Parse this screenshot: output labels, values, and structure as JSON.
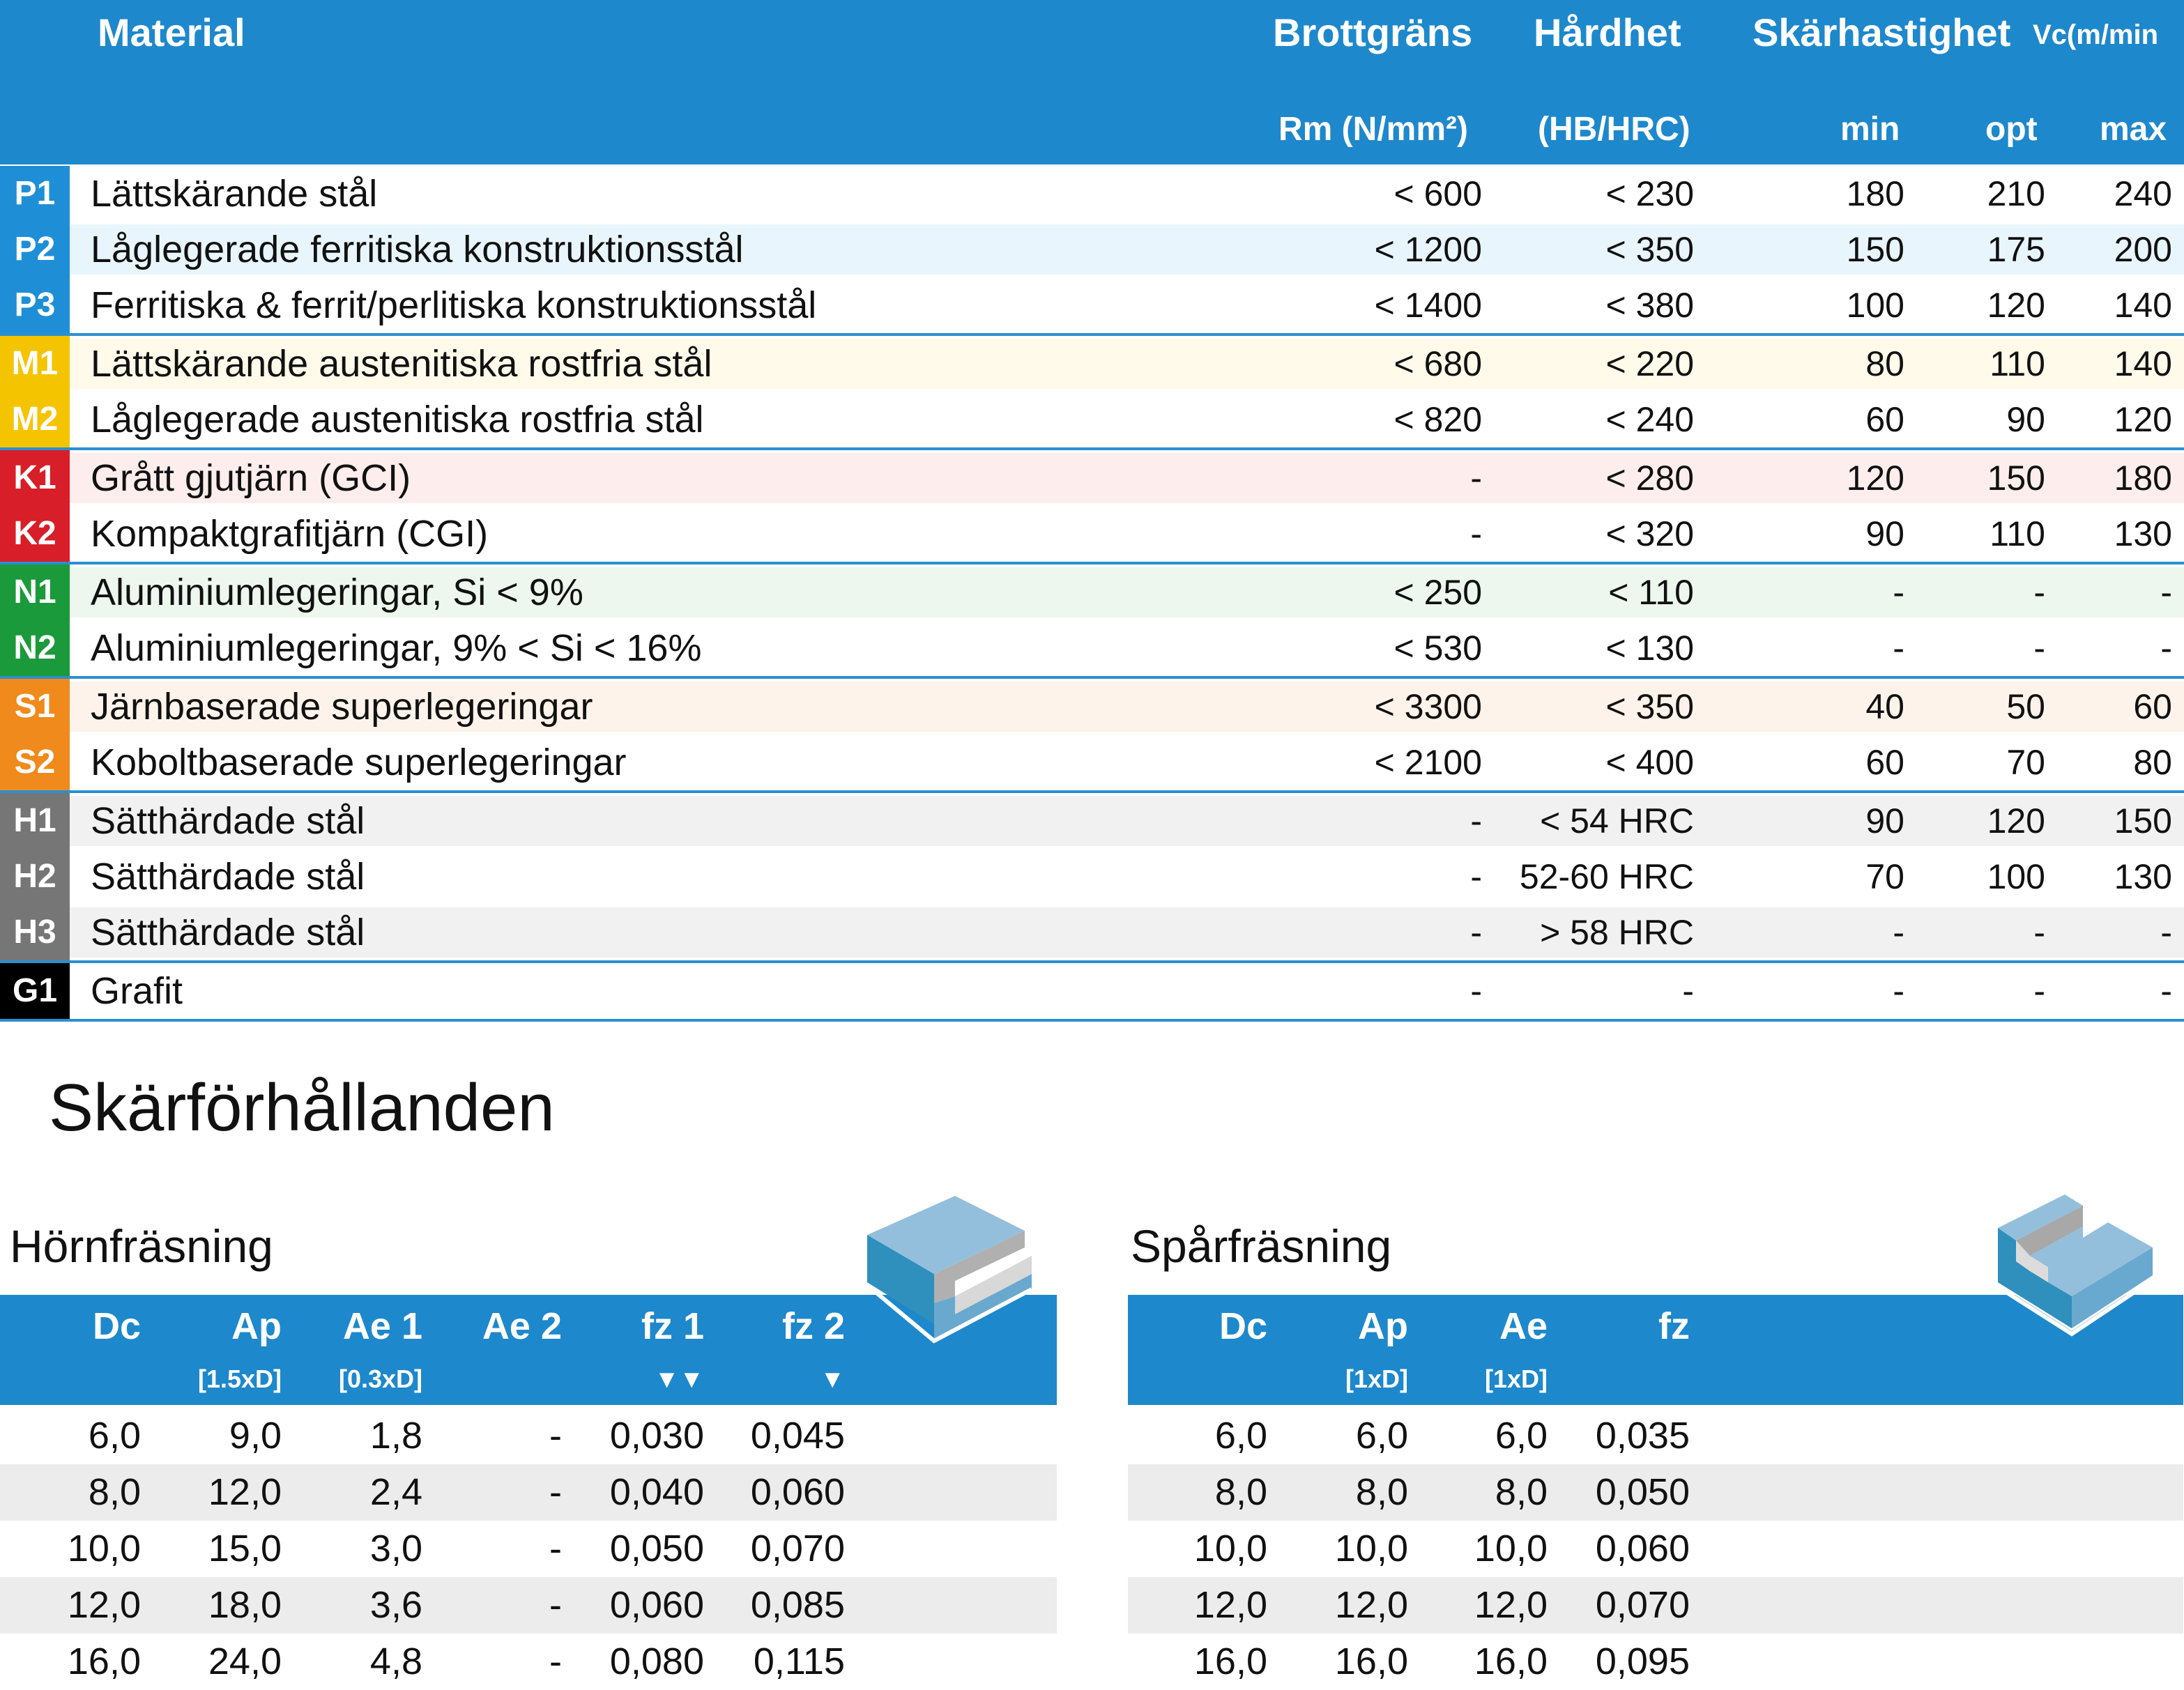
{
  "header": {
    "material": "Material",
    "brottgrans": "Brottgräns",
    "hardhet": "Hårdhet",
    "skarhastighet": "Skärhastighet",
    "vc_unit": "Vc(m/min",
    "rm_unit": "Rm (N/mm²)",
    "hb_unit": "(HB/HRC)",
    "min": "min",
    "opt": "opt",
    "max": "max"
  },
  "colors": {
    "header": "#1e88cc",
    "P": "#1e8fd6",
    "M": "#f5c400",
    "K": "#d81e28",
    "N": "#1a9a3a",
    "S": "#f08a1c",
    "H": "#767676",
    "G": "#000000"
  },
  "groups": [
    {
      "color_key": "P",
      "tint": "#e8f5fd",
      "rows": [
        {
          "code": "P1",
          "name": "Lättskärande stål",
          "rm": "< 600",
          "hb": "< 230",
          "min": "180",
          "opt": "210",
          "max": "240",
          "tinted": false
        },
        {
          "code": "P2",
          "name": "Låglegerade ferritiska konstruktionsstål",
          "rm": "< 1200",
          "hb": "< 350",
          "min": "150",
          "opt": "175",
          "max": "200",
          "tinted": true
        },
        {
          "code": "P3",
          "name": "Ferritiska & ferrit/perlitiska konstruktionsstål",
          "rm": "< 1400",
          "hb": "< 380",
          "min": "100",
          "opt": "120",
          "max": "140",
          "tinted": false
        }
      ]
    },
    {
      "color_key": "M",
      "tint": "#fffaea",
      "rows": [
        {
          "code": "M1",
          "name": "Lättskärande austenitiska rostfria stål",
          "rm": "< 680",
          "hb": "< 220",
          "min": "80",
          "opt": "110",
          "max": "140",
          "tinted": true
        },
        {
          "code": "M2",
          "name": "Låglegerade austenitiska rostfria stål",
          "rm": "< 820",
          "hb": "< 240",
          "min": "60",
          "opt": "90",
          "max": "120",
          "tinted": false
        }
      ]
    },
    {
      "color_key": "K",
      "tint": "#fdeeed",
      "rows": [
        {
          "code": "K1",
          "name": "Grått gjutjärn (GCI)",
          "rm": "-",
          "hb": "< 280",
          "min": "120",
          "opt": "150",
          "max": "180",
          "tinted": true
        },
        {
          "code": "K2",
          "name": "Kompaktgrafitjärn (CGI)",
          "rm": "-",
          "hb": "< 320",
          "min": "90",
          "opt": "110",
          "max": "130",
          "tinted": false
        }
      ]
    },
    {
      "color_key": "N",
      "tint": "#edf7ee",
      "rows": [
        {
          "code": "N1",
          "name": "Aluminiumlegeringar, Si < 9%",
          "rm": "< 250",
          "hb": "< 110",
          "min": "-",
          "opt": "-",
          "max": "-",
          "tinted": true
        },
        {
          "code": "N2",
          "name": "Aluminiumlegeringar, 9% < Si < 16%",
          "rm": "< 530",
          "hb": "< 130",
          "min": "-",
          "opt": "-",
          "max": "-",
          "tinted": false
        }
      ]
    },
    {
      "color_key": "S",
      "tint": "#fef3ea",
      "rows": [
        {
          "code": "S1",
          "name": "Järnbaserade superlegeringar",
          "rm": "< 3300",
          "hb": "< 350",
          "min": "40",
          "opt": "50",
          "max": "60",
          "tinted": true
        },
        {
          "code": "S2",
          "name": "Koboltbaserade superlegeringar",
          "rm": "< 2100",
          "hb": "< 400",
          "min": "60",
          "opt": "70",
          "max": "80",
          "tinted": false
        }
      ]
    },
    {
      "color_key": "H",
      "tint": "#f1f1f1",
      "rows": [
        {
          "code": "H1",
          "name": "Sätthärdade stål",
          "rm": "-",
          "hb": "< 54 HRC",
          "min": "90",
          "opt": "120",
          "max": "150",
          "tinted": true
        },
        {
          "code": "H2",
          "name": "Sätthärdade stål",
          "rm": "-",
          "hb": "52-60 HRC",
          "min": "70",
          "opt": "100",
          "max": "130",
          "tinted": false
        },
        {
          "code": "H3",
          "name": "Sätthärdade stål",
          "rm": "-",
          "hb": "> 58 HRC",
          "min": "-",
          "opt": "-",
          "max": "-",
          "tinted": true
        }
      ]
    },
    {
      "color_key": "G",
      "tint": "#ffffff",
      "rows": [
        {
          "code": "G1",
          "name": "Grafit",
          "rm": "-",
          "hb": "-",
          "min": "-",
          "opt": "-",
          "max": "-",
          "tinted": false
        }
      ]
    }
  ],
  "cutting": {
    "title": "Skärförhållanden",
    "corner": {
      "title": "Hörnfräsning",
      "icon": "shoulder-milling-icon",
      "headers": [
        "Dc",
        "Ap",
        "Ae 1",
        "Ae 2",
        "fz 1",
        "fz 2"
      ],
      "subheaders": [
        "",
        "[1.5xD]",
        "[0.3xD]",
        "",
        "▼▼",
        "▼"
      ],
      "rows": [
        [
          "6,0",
          "9,0",
          "1,8",
          "-",
          "0,030",
          "0,045"
        ],
        [
          "8,0",
          "12,0",
          "2,4",
          "-",
          "0,040",
          "0,060"
        ],
        [
          "10,0",
          "15,0",
          "3,0",
          "-",
          "0,050",
          "0,070"
        ],
        [
          "12,0",
          "18,0",
          "3,6",
          "-",
          "0,060",
          "0,085"
        ],
        [
          "16,0",
          "24,0",
          "4,8",
          "-",
          "0,080",
          "0,115"
        ]
      ]
    },
    "slot": {
      "title": "Spårfräsning",
      "icon": "slot-milling-icon",
      "headers": [
        "Dc",
        "Ap",
        "Ae",
        "fz"
      ],
      "subheaders": [
        "",
        "[1xD]",
        "[1xD]",
        ""
      ],
      "rows": [
        [
          "6,0",
          "6,0",
          "6,0",
          "0,035"
        ],
        [
          "8,0",
          "8,0",
          "8,0",
          "0,050"
        ],
        [
          "10,0",
          "10,0",
          "10,0",
          "0,060"
        ],
        [
          "12,0",
          "12,0",
          "12,0",
          "0,070"
        ],
        [
          "16,0",
          "16,0",
          "16,0",
          "0,095"
        ]
      ]
    }
  }
}
